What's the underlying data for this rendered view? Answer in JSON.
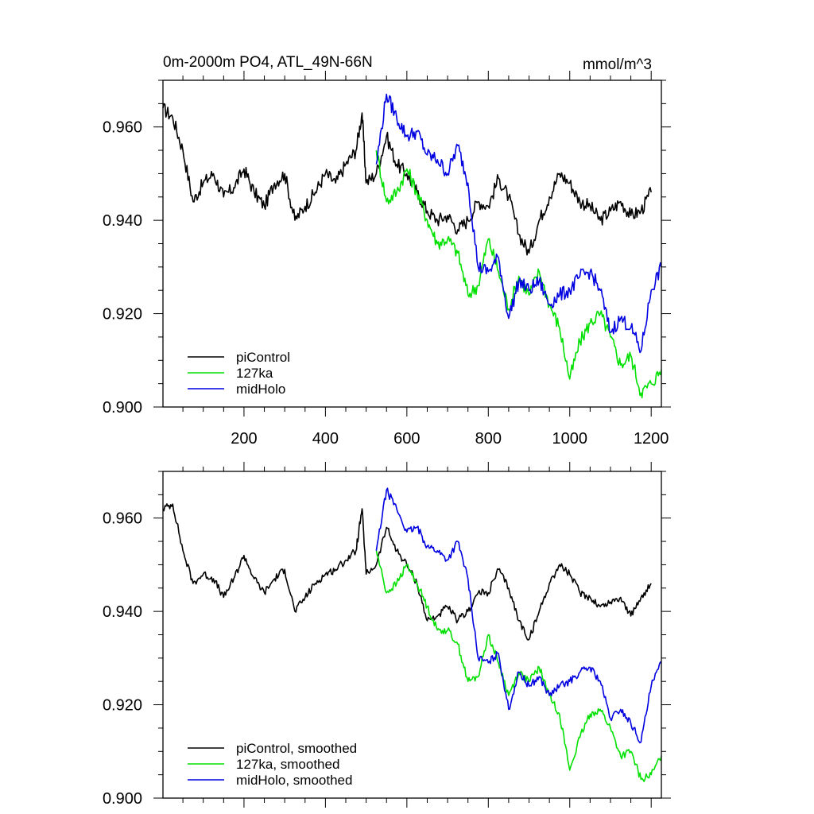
{
  "colors": {
    "piControl": "#000000",
    "127ka": "#00e000",
    "midHolo": "#0000e0",
    "frame": "#000000"
  },
  "chart_data": [
    {
      "type": "line",
      "title": "0m-2000m PO4, ATL_49N-66N",
      "units": "mmol/m^3",
      "xlim": [
        1,
        1225
      ],
      "ylim": [
        0.9,
        0.97
      ],
      "xticks": [
        200,
        400,
        600,
        800,
        1000,
        1200
      ],
      "xtick_labels": [
        "200",
        "400",
        "600",
        "800",
        "1000",
        "1200"
      ],
      "yticks": [
        0.9,
        0.92,
        0.94,
        0.96
      ],
      "ytick_labels": [
        "0.900",
        "0.920",
        "0.940",
        "0.960"
      ],
      "legend_position": "bottom-left",
      "series": [
        {
          "name": "piControl",
          "color_key": "piControl",
          "x": [
            1,
            25,
            50,
            75,
            100,
            125,
            150,
            175,
            200,
            225,
            250,
            275,
            300,
            325,
            350,
            375,
            400,
            425,
            450,
            475,
            490,
            500,
            525,
            550,
            575,
            600,
            625,
            650,
            675,
            700,
            725,
            750,
            775,
            800,
            825,
            850,
            875,
            900,
            925,
            950,
            975,
            1000,
            1025,
            1050,
            1075,
            1100,
            1125,
            1150,
            1175,
            1200
          ],
          "y": [
            0.964,
            0.962,
            0.955,
            0.944,
            0.948,
            0.95,
            0.945,
            0.947,
            0.951,
            0.946,
            0.943,
            0.948,
            0.95,
            0.94,
            0.943,
            0.946,
            0.95,
            0.948,
            0.952,
            0.955,
            0.963,
            0.948,
            0.95,
            0.958,
            0.952,
            0.95,
            0.946,
            0.942,
            0.94,
            0.941,
            0.938,
            0.94,
            0.944,
            0.943,
            0.949,
            0.945,
            0.937,
            0.933,
            0.94,
            0.945,
            0.95,
            0.948,
            0.944,
            0.943,
            0.94,
            0.942,
            0.944,
            0.941,
            0.942,
            0.946
          ]
        },
        {
          "name": "127ka",
          "color_key": "127ka",
          "x": [
            525,
            550,
            575,
            600,
            625,
            650,
            675,
            700,
            725,
            750,
            775,
            800,
            825,
            850,
            875,
            900,
            925,
            950,
            975,
            1000,
            1025,
            1050,
            1075,
            1100,
            1125,
            1150,
            1175,
            1200,
            1225
          ],
          "y": [
            0.955,
            0.944,
            0.946,
            0.951,
            0.946,
            0.94,
            0.935,
            0.936,
            0.933,
            0.924,
            0.926,
            0.936,
            0.929,
            0.921,
            0.928,
            0.924,
            0.929,
            0.922,
            0.917,
            0.906,
            0.914,
            0.918,
            0.92,
            0.915,
            0.909,
            0.911,
            0.903,
            0.905,
            0.908
          ]
        },
        {
          "name": "midHolo",
          "color_key": "midHolo",
          "x": [
            525,
            550,
            575,
            600,
            625,
            650,
            675,
            700,
            725,
            750,
            775,
            800,
            825,
            850,
            875,
            900,
            925,
            950,
            975,
            1000,
            1025,
            1050,
            1075,
            1100,
            1125,
            1150,
            1175,
            1200,
            1225
          ],
          "y": [
            0.952,
            0.967,
            0.962,
            0.958,
            0.959,
            0.954,
            0.953,
            0.95,
            0.956,
            0.948,
            0.93,
            0.929,
            0.932,
            0.919,
            0.927,
            0.925,
            0.927,
            0.922,
            0.924,
            0.925,
            0.928,
            0.929,
            0.925,
            0.916,
            0.919,
            0.917,
            0.912,
            0.925,
            0.93
          ]
        }
      ]
    },
    {
      "type": "line",
      "title": "",
      "xlim": [
        1,
        1225
      ],
      "ylim": [
        0.9,
        0.97
      ],
      "xticks": [
        200,
        400,
        600,
        800,
        1000,
        1200
      ],
      "yticks": [
        0.9,
        0.92,
        0.94,
        0.96
      ],
      "ytick_labels": [
        "0.900",
        "0.920",
        "0.940",
        "0.960"
      ],
      "legend_position": "bottom-left",
      "series": [
        {
          "name": "piControl, smoothed",
          "color_key": "piControl",
          "x": [
            1,
            25,
            50,
            75,
            100,
            125,
            150,
            175,
            200,
            225,
            250,
            275,
            300,
            325,
            350,
            375,
            400,
            425,
            450,
            475,
            490,
            500,
            525,
            550,
            575,
            600,
            625,
            650,
            675,
            700,
            725,
            750,
            775,
            800,
            825,
            850,
            875,
            900,
            925,
            950,
            975,
            1000,
            1025,
            1050,
            1075,
            1100,
            1125,
            1150,
            1175,
            1200
          ],
          "y": [
            0.962,
            0.963,
            0.953,
            0.946,
            0.948,
            0.947,
            0.943,
            0.947,
            0.952,
            0.947,
            0.944,
            0.947,
            0.949,
            0.94,
            0.943,
            0.946,
            0.948,
            0.949,
            0.951,
            0.953,
            0.962,
            0.948,
            0.95,
            0.958,
            0.953,
            0.95,
            0.946,
            0.938,
            0.939,
            0.941,
            0.938,
            0.94,
            0.944,
            0.944,
            0.949,
            0.945,
            0.938,
            0.934,
            0.94,
            0.946,
            0.95,
            0.948,
            0.944,
            0.943,
            0.941,
            0.942,
            0.943,
            0.939,
            0.943,
            0.946
          ]
        },
        {
          "name": "127ka, smoothed",
          "color_key": "127ka",
          "x": [
            525,
            550,
            575,
            600,
            625,
            650,
            675,
            700,
            725,
            750,
            775,
            800,
            825,
            850,
            875,
            900,
            925,
            950,
            975,
            1000,
            1025,
            1050,
            1075,
            1100,
            1125,
            1150,
            1175,
            1200,
            1225
          ],
          "y": [
            0.953,
            0.944,
            0.946,
            0.95,
            0.946,
            0.941,
            0.936,
            0.936,
            0.933,
            0.925,
            0.926,
            0.935,
            0.929,
            0.922,
            0.927,
            0.925,
            0.928,
            0.922,
            0.918,
            0.906,
            0.913,
            0.918,
            0.919,
            0.915,
            0.909,
            0.91,
            0.904,
            0.905,
            0.909
          ]
        },
        {
          "name": "midHolo, smoothed",
          "color_key": "midHolo",
          "x": [
            525,
            550,
            575,
            600,
            625,
            650,
            675,
            700,
            725,
            750,
            775,
            800,
            825,
            850,
            875,
            900,
            925,
            950,
            975,
            1000,
            1025,
            1050,
            1075,
            1100,
            1125,
            1150,
            1175,
            1200,
            1225
          ],
          "y": [
            0.953,
            0.966,
            0.962,
            0.957,
            0.958,
            0.954,
            0.953,
            0.951,
            0.955,
            0.947,
            0.93,
            0.929,
            0.931,
            0.919,
            0.927,
            0.924,
            0.926,
            0.922,
            0.924,
            0.925,
            0.927,
            0.928,
            0.925,
            0.917,
            0.919,
            0.916,
            0.912,
            0.924,
            0.929
          ]
        }
      ]
    }
  ]
}
